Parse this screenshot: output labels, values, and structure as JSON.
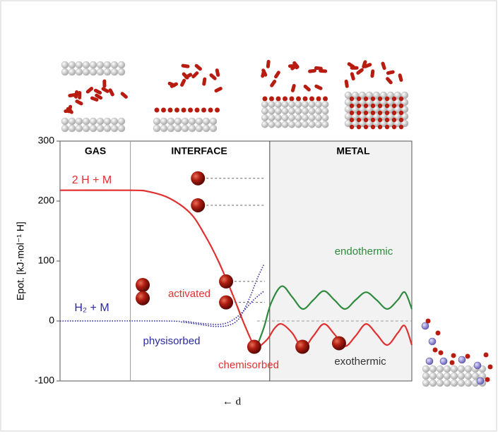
{
  "chart_data": {
    "type": "line",
    "y_label": "Epot. [kJ·mol⁻¹ H]",
    "x_label": "← d",
    "ylim": [
      -100,
      300
    ],
    "yticks": [
      300,
      200,
      100,
      0,
      -100
    ],
    "xlim": [
      0,
      100
    ],
    "region_labels": [
      "GAS",
      "INTERFACE",
      "METAL"
    ],
    "region_bounds": [
      20,
      59.6
    ],
    "annotations": [
      "activated",
      "physisorbed",
      "chemisorbed",
      "endothermic",
      "exothermic"
    ],
    "series": [
      {
        "name": "2 H + M",
        "color": "#e03030",
        "x": [
          0,
          20,
          25,
          31,
          37,
          41,
          45,
          49,
          52,
          55,
          56,
          59,
          61,
          63,
          66,
          69,
          72,
          75,
          78,
          81,
          84,
          87,
          90,
          93,
          96,
          98,
          100
        ],
        "values": [
          218,
          218,
          216,
          205,
          180,
          145,
          100,
          45,
          0,
          -40,
          -45,
          -30,
          -12,
          -5,
          -20,
          -45,
          -25,
          -5,
          -22,
          -42,
          -25,
          -5,
          -22,
          -40,
          -20,
          -8,
          -40
        ]
      },
      {
        "name": "H₂ + M",
        "color": "#2a2aa0",
        "x": [
          0,
          30,
          35,
          40,
          44,
          48,
          51,
          54,
          56,
          58
        ],
        "values": [
          0,
          0,
          -2,
          -6,
          -9,
          -7,
          5,
          40,
          70,
          95
        ]
      },
      {
        "color": "#2a2aa0",
        "x": [
          35,
          42,
          47,
          51,
          55,
          58
        ],
        "values": [
          0,
          -5,
          -4,
          10,
          35,
          50
        ]
      },
      {
        "color": "#2e8b3e",
        "x": [
          56,
          58,
          60,
          63,
          66,
          69,
          72,
          75,
          78,
          81,
          84,
          87,
          90,
          93,
          96,
          98,
          100
        ],
        "values": [
          -42,
          -10,
          30,
          58,
          40,
          20,
          35,
          50,
          35,
          20,
          35,
          48,
          35,
          20,
          35,
          48,
          20
        ]
      }
    ],
    "atoms": {
      "x": [
        39.2,
        39.2,
        47.2,
        47.2,
        55.2,
        68.9,
        79.3,
        23.5,
        23.5
      ],
      "values": [
        238,
        193,
        66,
        31,
        -43,
        -43,
        -37,
        60,
        38
      ]
    },
    "grid": false
  }
}
